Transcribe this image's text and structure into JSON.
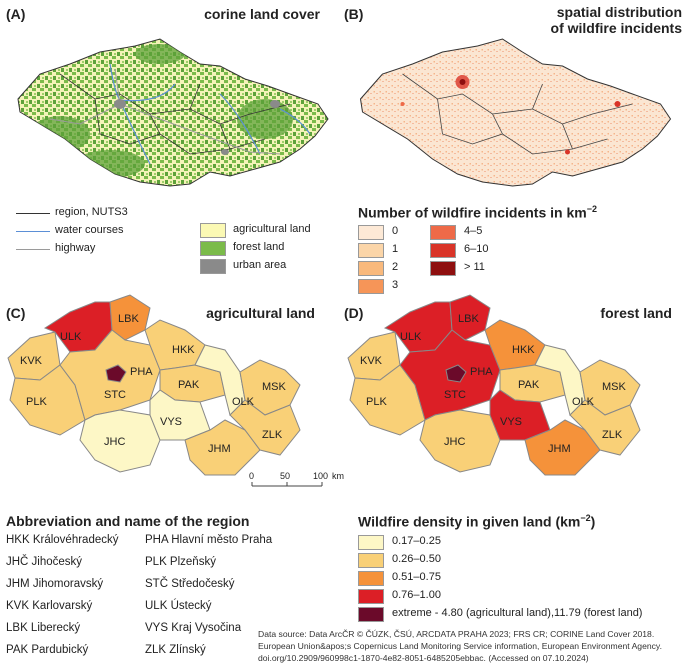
{
  "panels": {
    "a": {
      "label": "(A)",
      "title": "corine land cover"
    },
    "b": {
      "label": "(B)",
      "title_lines": [
        "spatial distribution",
        "of wildfire incidents"
      ]
    },
    "c": {
      "label": "(C)",
      "title": "agricultural land"
    },
    "d": {
      "label": "(D)",
      "title": "forest land"
    }
  },
  "legend_lines": [
    {
      "label": "region, NUTS3",
      "color": "#333333"
    },
    {
      "label": "water courses",
      "color": "#5b8fd6"
    },
    {
      "label": "highway",
      "color": "#9a9a9a"
    }
  ],
  "legend_landcover": [
    {
      "label": "agricultural land",
      "color": "#fbf9b4"
    },
    {
      "label": "forest land",
      "color": "#7bbb4a"
    },
    {
      "label": "urban area",
      "color": "#8a8a8a"
    }
  ],
  "incidents_legend": {
    "title": "Number of wildfire incidents in km",
    "superscript": "−2",
    "col1": [
      {
        "label": "0",
        "color": "#fde9d6"
      },
      {
        "label": "1",
        "color": "#fbd5a8"
      },
      {
        "label": "2",
        "color": "#f9b97c"
      },
      {
        "label": "3",
        "color": "#f69558"
      }
    ],
    "col2": [
      {
        "label": "4–5",
        "color": "#ee6a48"
      },
      {
        "label": "6–10",
        "color": "#d93428"
      },
      {
        "label": "> 11",
        "color": "#8e0f0f"
      }
    ]
  },
  "scale_bar": {
    "ticks": [
      "0",
      "50",
      "100"
    ],
    "unit": "km"
  },
  "abbreviations": {
    "title": "Abbreviation and name of the region",
    "left": [
      "HKK Královéhradecký",
      "JHČ Jihočeský",
      "JHM Jihomoravský",
      "KVK Karlovarský",
      "LBK Liberecký",
      "PAK Pardubický"
    ],
    "right": [
      "PHA Hlavní město Praha",
      "PLK Plzeňský",
      "STČ Středočeský",
      "ULK Ústecký",
      "VYS Kraj Vysočina",
      "ZLK Zlínský"
    ]
  },
  "density_legend": {
    "title": "Wildfire density in given land (km",
    "superscript": "−2",
    "title_end": ")",
    "classes": [
      {
        "label": "0.17–0.25",
        "color": "#fdf7c6"
      },
      {
        "label": "0.26–0.50",
        "color": "#f9d077"
      },
      {
        "label": "0.51–0.75",
        "color": "#f5923a"
      },
      {
        "label": "0.76–1.00",
        "color": "#dc1f26"
      },
      {
        "label": "extreme - 4.80 (agricultural land),11.79 (forest land)",
        "color": "#6b0a2a"
      }
    ]
  },
  "source_note": [
    "Data source: Data ArcČR © ČÚZK, ČSÚ, ARCDATA PRAHA 2023; FRS CR; CORINE Land Cover 2018.",
    "European Union&apos;s Copernicus Land Monitoring Service information, European Environment Agency.",
    "doi.org/10.2909/960998c1-1870-4e82-8051-6485205ebbac. (Accessed on 07.10.2024)"
  ],
  "regions": [
    "ULK",
    "LBK",
    "KVK",
    "PHA",
    "HKK",
    "STC",
    "PAK",
    "PLK",
    "MSK",
    "OLK",
    "VYS",
    "JHC",
    "JHM",
    "ZLK"
  ],
  "map_c_classes": {
    "ULK": "#dc1f26",
    "LBK": "#f5923a",
    "KVK": "#f9d077",
    "PHA": "#6b0a2a",
    "HKK": "#f9d077",
    "STC": "#f9d077",
    "PAK": "#f9d077",
    "PLK": "#f9d077",
    "MSK": "#f9d077",
    "OLK": "#fdf7c6",
    "VYS": "#fdf7c6",
    "JHC": "#fdf7c6",
    "JHM": "#f9d077",
    "ZLK": "#f9d077"
  },
  "map_d_classes": {
    "ULK": "#dc1f26",
    "LBK": "#dc1f26",
    "KVK": "#f9d077",
    "PHA": "#6b0a2a",
    "HKK": "#f5923a",
    "STC": "#dc1f26",
    "PAK": "#f9d077",
    "PLK": "#f9d077",
    "MSK": "#f9d077",
    "OLK": "#fdf7c6",
    "VYS": "#dc1f26",
    "JHC": "#f9d077",
    "JHM": "#f5923a",
    "ZLK": "#f9d077"
  }
}
